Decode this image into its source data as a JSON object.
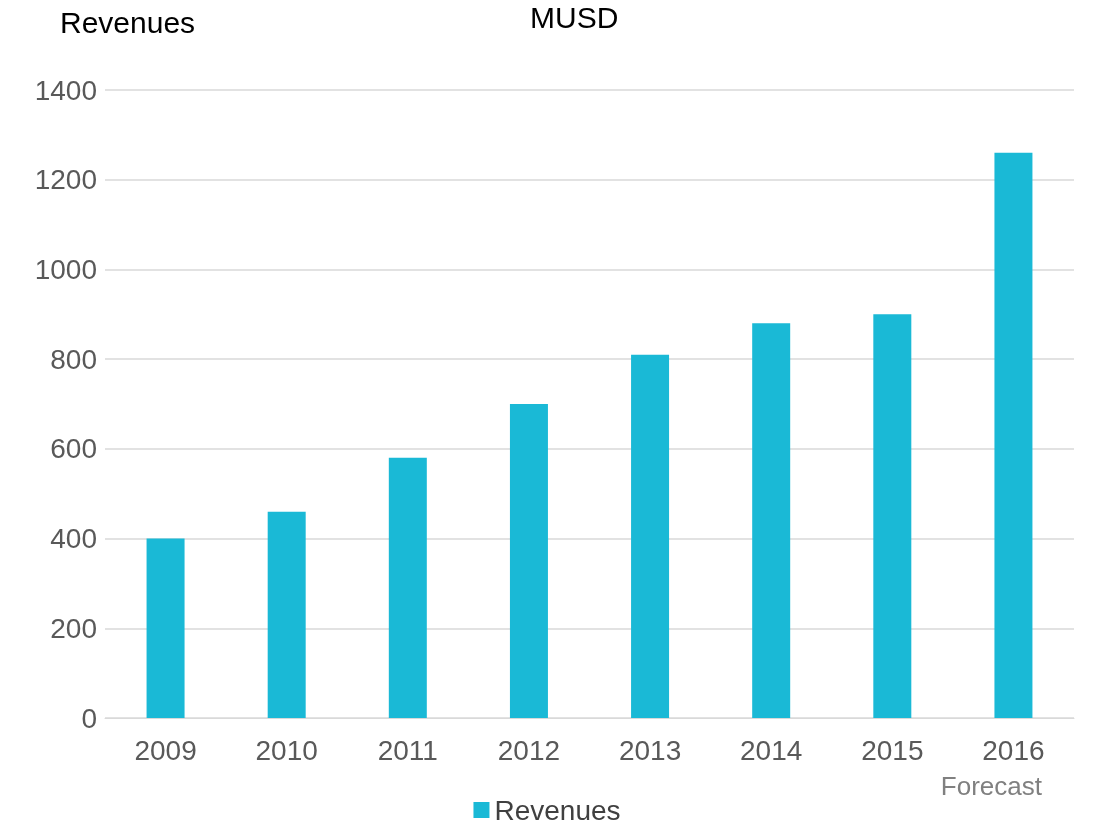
{
  "chart_data": {
    "type": "bar",
    "title": "Revenues",
    "ylabel": "MUSD",
    "categories": [
      "2009",
      "2010",
      "2011",
      "2012",
      "2013",
      "2014",
      "2015",
      "2016"
    ],
    "series": [
      {
        "name": "Revenues",
        "color": "#1ab9d6",
        "values": [
          400,
          460,
          580,
          700,
          810,
          880,
          900,
          1260
        ]
      }
    ],
    "ylim": [
      0,
      1400
    ],
    "yticks": [
      0,
      200,
      400,
      600,
      800,
      1000,
      1200,
      1400
    ],
    "grid": "y",
    "legend": "bottom",
    "annotations": [
      "Forecast"
    ]
  }
}
